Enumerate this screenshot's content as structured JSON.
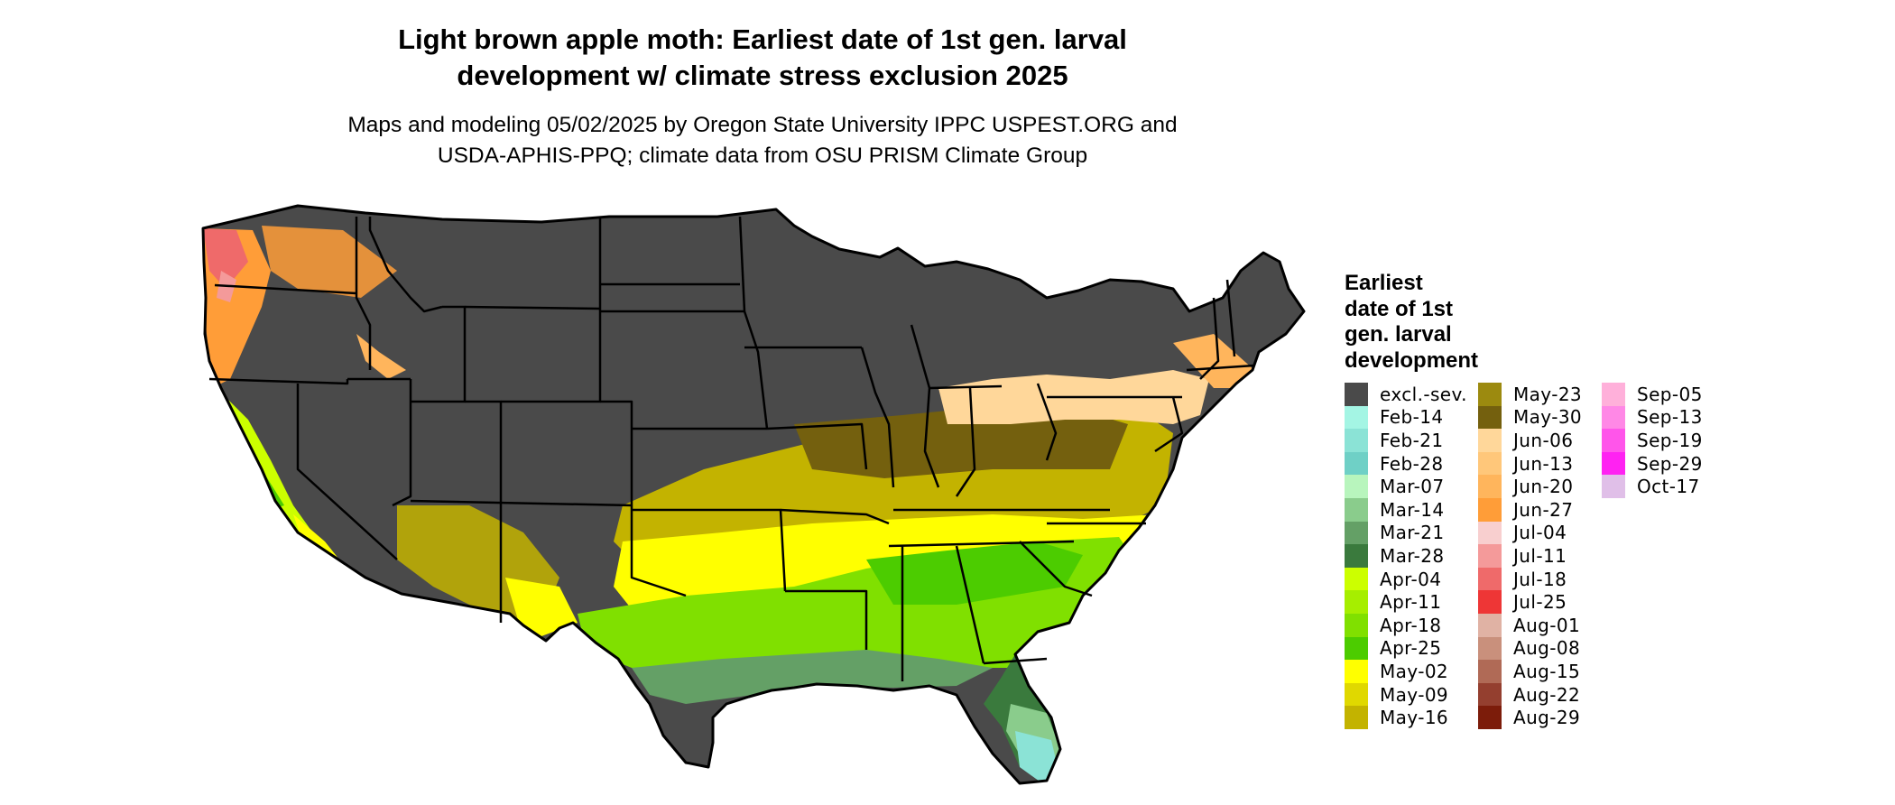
{
  "title": {
    "line1": "Light brown apple moth: Earliest date of 1st gen. larval",
    "line2": "development w/ climate stress exclusion 2025"
  },
  "subtitle": {
    "line1": "Maps and modeling 05/02/2025 by Oregon State University IPPC USPEST.ORG and",
    "line2": "USDA-APHIS-PPQ; climate data from OSU PRISM Climate Group"
  },
  "legend": {
    "title_lines": [
      "Earliest",
      "date of 1st",
      "gen. larval",
      "development"
    ],
    "items": [
      {
        "label": "excl.-sev.",
        "color": "#4a4a4a"
      },
      {
        "label": "Feb-14",
        "color": "#a4f5e4"
      },
      {
        "label": "Feb-21",
        "color": "#8be3d6"
      },
      {
        "label": "Feb-28",
        "color": "#6fd0c6"
      },
      {
        "label": "Mar-07",
        "color": "#b8f5bd"
      },
      {
        "label": "Mar-14",
        "color": "#8acc8c"
      },
      {
        "label": "Mar-21",
        "color": "#64a066"
      },
      {
        "label": "Mar-28",
        "color": "#3a7a3d"
      },
      {
        "label": "Apr-04",
        "color": "#ccff00"
      },
      {
        "label": "Apr-11",
        "color": "#a6ee00"
      },
      {
        "label": "Apr-18",
        "color": "#80e000"
      },
      {
        "label": "Apr-25",
        "color": "#4ccc00"
      },
      {
        "label": "May-02",
        "color": "#ffff00"
      },
      {
        "label": "May-09",
        "color": "#e0d800"
      },
      {
        "label": "May-16",
        "color": "#c3b300"
      },
      {
        "label": "May-23",
        "color": "#9c8a0f"
      },
      {
        "label": "May-30",
        "color": "#74600e"
      },
      {
        "label": "Jun-06",
        "color": "#ffd79a"
      },
      {
        "label": "Jun-13",
        "color": "#ffc77a"
      },
      {
        "label": "Jun-20",
        "color": "#ffb55c"
      },
      {
        "label": "Jun-27",
        "color": "#ff9d38"
      },
      {
        "label": "Jul-04",
        "color": "#f8cfcf"
      },
      {
        "label": "Jul-11",
        "color": "#f49a9a"
      },
      {
        "label": "Jul-18",
        "color": "#ef6a6a"
      },
      {
        "label": "Jul-25",
        "color": "#ee3636"
      },
      {
        "label": "Aug-01",
        "color": "#e0b2a4"
      },
      {
        "label": "Aug-08",
        "color": "#c9907c"
      },
      {
        "label": "Aug-15",
        "color": "#b06a56"
      },
      {
        "label": "Aug-22",
        "color": "#943f2f"
      },
      {
        "label": "Aug-29",
        "color": "#7c1c0a"
      },
      {
        "label": "Sep-05",
        "color": "#ffb0da"
      },
      {
        "label": "Sep-13",
        "color": "#ff88e6"
      },
      {
        "label": "Sep-19",
        "color": "#ff55ea"
      },
      {
        "label": "Sep-29",
        "color": "#ff22f2"
      },
      {
        "label": "Oct-17",
        "color": "#e0bfe8"
      }
    ]
  }
}
